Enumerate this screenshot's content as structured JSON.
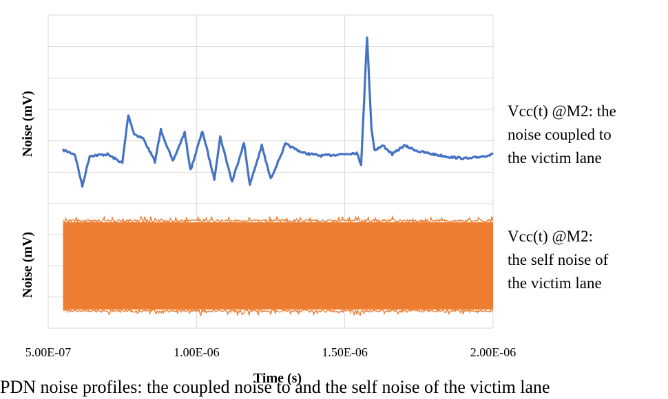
{
  "chart_data": [
    {
      "type": "line",
      "ylabel": "Noise (mV)",
      "annotation": "Vcc(t) @M2: the\nnoise coupled to\nthe victim lane",
      "color": "#4472C4",
      "x": [
        "5.50E-07",
        "5.90E-07",
        "6.15E-07",
        "6.40E-07",
        "7.00E-07",
        "7.50E-07",
        "7.70E-07",
        "7.90E-07",
        "8.20E-07",
        "8.60E-07",
        "8.80E-07",
        "9.20E-07",
        "9.60E-07",
        "9.80E-07",
        "1.02E-06",
        "1.06E-06",
        "1.08E-06",
        "1.12E-06",
        "1.16E-06",
        "1.18E-06",
        "1.22E-06",
        "1.25E-06",
        "1.30E-06",
        "1.36E-06",
        "1.42E-06",
        "1.48E-06",
        "1.54E-06",
        "1.555E-06",
        "1.575E-06",
        "1.59E-06",
        "1.60E-06",
        "1.63E-06",
        "1.66E-06",
        "1.70E-06",
        "1.75E-06",
        "1.80E-06",
        "1.86E-06",
        "1.92E-06",
        "2.00E-06"
      ],
      "values": [
        10.2,
        9.9,
        7.7,
        9.8,
        9.9,
        9.3,
        12.6,
        11.3,
        11.0,
        9.4,
        11.6,
        9.4,
        11.4,
        8.8,
        11.5,
        8.2,
        11.1,
        8.0,
        10.7,
        7.8,
        10.5,
        8.2,
        10.6,
        10.0,
        9.8,
        9.9,
        10.0,
        9.2,
        18.0,
        11.7,
        10.2,
        10.5,
        9.9,
        10.5,
        10.1,
        9.9,
        9.7,
        9.6,
        9.9
      ],
      "xlim": [
        "5.00E-07",
        "2.00E-06"
      ],
      "ylim": [
        6.5,
        19.5
      ],
      "grid": true
    },
    {
      "type": "line",
      "ylabel": "Noise (mV)",
      "annotation": "Vcc(t) @M2:\nthe self noise of\nthe victim lane",
      "color": "#ED7D31",
      "x": [
        "5.50E-07",
        "2.00E-06"
      ],
      "values": [
        -14,
        14
      ],
      "xlim": [
        "5.00E-07",
        "2.00E-06"
      ],
      "ylim": [
        -20,
        20
      ],
      "grid": true
    }
  ],
  "xaxis": {
    "title": "Time (s)",
    "ticks": [
      "5.00E-07",
      "1.00E-06",
      "1.50E-06",
      "2.00E-06"
    ]
  },
  "caption": "PDN noise profiles: the coupled noise to and the self noise of the victim lane"
}
